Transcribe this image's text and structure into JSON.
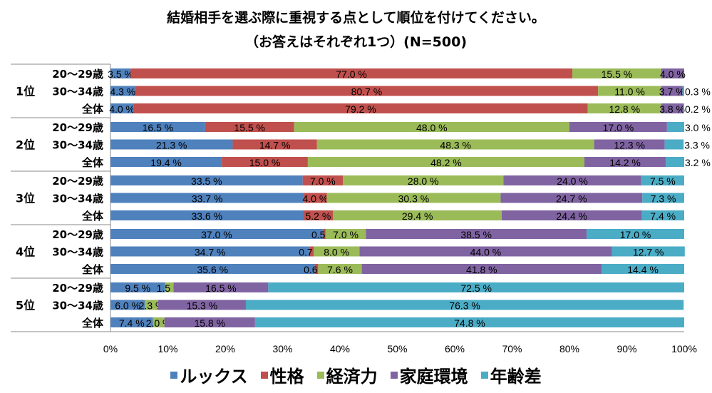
{
  "chart_data": {
    "type": "bar",
    "orientation": "horizontal-stacked-100",
    "title": "結婚相手を選ぶ際に重視する点として順位を付けてください。",
    "subtitle": "（お答えはそれぞれ1つ）(N=500)",
    "xlim": [
      0,
      100
    ],
    "xticks": [
      "0%",
      "10%",
      "20%",
      "30%",
      "40%",
      "50%",
      "60%",
      "70%",
      "80%",
      "90%",
      "100%"
    ],
    "legend_position": "bottom",
    "series": [
      {
        "name": "ルックス",
        "color": "#4f81bd"
      },
      {
        "name": "性格",
        "color": "#c0504d"
      },
      {
        "name": "経済力",
        "color": "#9bbb59"
      },
      {
        "name": "家庭環境",
        "color": "#8064a2"
      },
      {
        "name": "年齢差",
        "color": "#4bacc6"
      }
    ],
    "groups": [
      {
        "label": "1位",
        "rows": [
          {
            "label": "20～29歳",
            "values": [
              3.5,
              77.0,
              15.5,
              4.0,
              0.0
            ],
            "labels": [
              "3.5 %",
              "77.0 %",
              "15.5 %",
              "4.0 %",
              ""
            ]
          },
          {
            "label": "30～34歳",
            "values": [
              4.3,
              80.7,
              11.0,
              3.7,
              0.3
            ],
            "labels": [
              "4.3 %",
              "80.7 %",
              "11.0 %",
              "3.7 %",
              "0.3 %"
            ]
          },
          {
            "label": "全体",
            "values": [
              4.0,
              79.2,
              12.8,
              3.8,
              0.2
            ],
            "labels": [
              "4.0 %",
              "79.2 %",
              "12.8 %",
              "3.8 %",
              "0.2 %"
            ]
          }
        ]
      },
      {
        "label": "2位",
        "rows": [
          {
            "label": "20～29歳",
            "values": [
              16.5,
              15.5,
              48.0,
              17.0,
              3.0
            ],
            "labels": [
              "16.5 %",
              "15.5 %",
              "48.0 %",
              "17.0 %",
              "3.0 %"
            ]
          },
          {
            "label": "30～34歳",
            "values": [
              21.3,
              14.7,
              48.3,
              12.3,
              3.3
            ],
            "labels": [
              "21.3 %",
              "14.7 %",
              "48.3 %",
              "12.3 %",
              "3.3 %"
            ]
          },
          {
            "label": "全体",
            "values": [
              19.4,
              15.0,
              48.2,
              14.2,
              3.2
            ],
            "labels": [
              "19.4 %",
              "15.0 %",
              "48.2 %",
              "14.2 %",
              "3.2 %"
            ]
          }
        ]
      },
      {
        "label": "3位",
        "rows": [
          {
            "label": "20～29歳",
            "values": [
              33.5,
              7.0,
              28.0,
              24.0,
              7.5
            ],
            "labels": [
              "33.5 %",
              "7.0 %",
              "28.0 %",
              "24.0 %",
              "7.5 %"
            ]
          },
          {
            "label": "30～34歳",
            "values": [
              33.7,
              4.0,
              30.3,
              24.7,
              7.3
            ],
            "labels": [
              "33.7 %",
              "4.0 %",
              "30.3 %",
              "24.7 %",
              "7.3 %"
            ]
          },
          {
            "label": "全体",
            "values": [
              33.6,
              5.2,
              29.4,
              24.4,
              7.4
            ],
            "labels": [
              "33.6 %",
              "5.2 %",
              "29.4 %",
              "24.4 %",
              "7.4 %"
            ]
          }
        ]
      },
      {
        "label": "4位",
        "rows": [
          {
            "label": "20～29歳",
            "values": [
              37.0,
              0.5,
              7.0,
              38.5,
              17.0
            ],
            "labels": [
              "37.0 %",
              "0.5 %",
              "7.0 %",
              "38.5 %",
              "17.0 %"
            ]
          },
          {
            "label": "30～34歳",
            "values": [
              34.7,
              0.7,
              8.0,
              44.0,
              12.7
            ],
            "labels": [
              "34.7 %",
              "0.7 %",
              "8.0 %",
              "44.0 %",
              "12.7 %"
            ]
          },
          {
            "label": "全体",
            "values": [
              35.6,
              0.6,
              7.6,
              41.8,
              14.4
            ],
            "labels": [
              "35.6 %",
              "0.6 %",
              "7.6 %",
              "41.8 %",
              "14.4 %"
            ]
          }
        ]
      },
      {
        "label": "5位",
        "rows": [
          {
            "label": "20～29歳",
            "values": [
              9.5,
              0.0,
              1.5,
              16.5,
              72.5
            ],
            "labels": [
              "9.5 %",
              "",
              "1.5 %",
              "16.5 %",
              "72.5 %"
            ]
          },
          {
            "label": "30～34歳",
            "values": [
              6.0,
              0.0,
              2.3,
              15.3,
              76.3
            ],
            "labels": [
              "6.0 %",
              "",
              "2.3 %",
              "15.3 %",
              "76.3 %"
            ]
          },
          {
            "label": "全体",
            "values": [
              7.4,
              0.0,
              2.0,
              15.8,
              74.8
            ],
            "labels": [
              "7.4 %",
              "",
              "2.0 %",
              "15.8 %",
              "74.8 %"
            ]
          }
        ]
      }
    ]
  }
}
